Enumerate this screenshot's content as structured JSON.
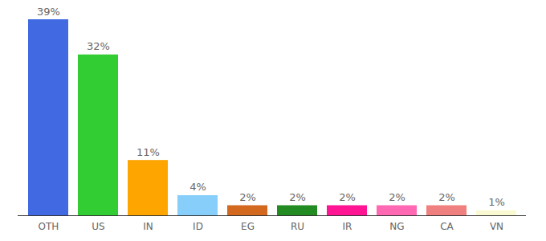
{
  "chart_data": {
    "type": "bar",
    "categories": [
      "OTH",
      "US",
      "IN",
      "ID",
      "EG",
      "RU",
      "IR",
      "NG",
      "CA",
      "VN"
    ],
    "values": [
      39,
      32,
      11,
      4,
      2,
      2,
      2,
      2,
      2,
      1
    ],
    "value_labels": [
      "39%",
      "32%",
      "11%",
      "4%",
      "2%",
      "2%",
      "2%",
      "2%",
      "2%",
      "1%"
    ],
    "colors": [
      "#4169e1",
      "#32cd32",
      "#ffa500",
      "#87cefa",
      "#d2691e",
      "#228b22",
      "#ff1493",
      "#ff69b4",
      "#f08080",
      "#fafad2"
    ],
    "ylim": [
      0,
      39
    ],
    "data_labels": true,
    "tick_labels": "x",
    "grid": false
  }
}
